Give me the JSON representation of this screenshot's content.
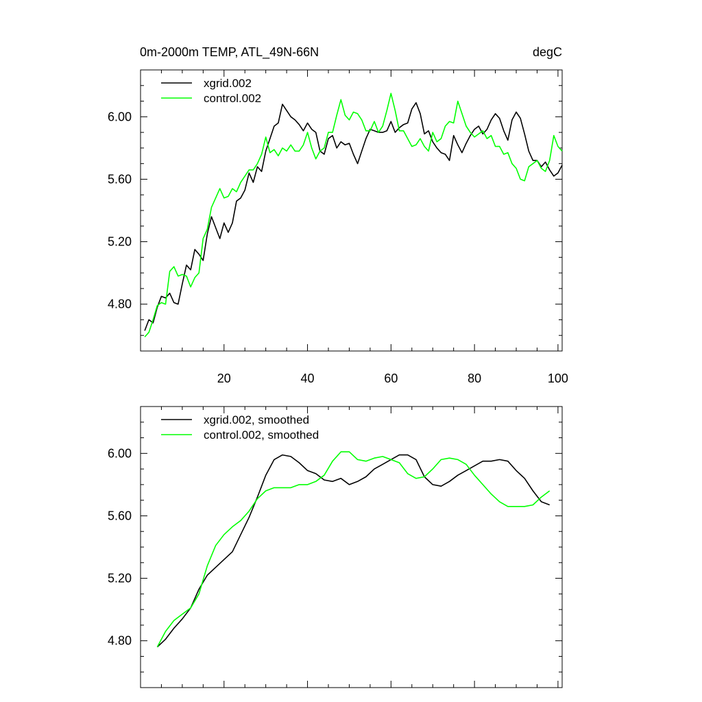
{
  "figure": {
    "title_left": "0m-2000m TEMP, ATL_49N-66N",
    "title_right": "degC"
  },
  "colors": {
    "black_series": "#000000",
    "green_series": "#00ff00",
    "axis": "#000000"
  },
  "chart_data": [
    {
      "type": "line",
      "title": "0m-2000m TEMP, ATL_49N-66N",
      "units": "degC",
      "xlim": [
        0,
        101
      ],
      "ylim": [
        4.5,
        6.3
      ],
      "xticks": [
        20,
        40,
        60,
        80,
        100
      ],
      "xtick_labels": [
        "20",
        "40",
        "60",
        "80",
        "100"
      ],
      "yticks": [
        4.8,
        5.2,
        5.6,
        6.0
      ],
      "ytick_labels": [
        "4.80",
        "5.20",
        "5.60",
        "6.00"
      ],
      "legend": [
        "xgrid.002",
        "control.002"
      ],
      "legend_position": "top-left",
      "x": [
        1,
        2,
        3,
        4,
        5,
        6,
        7,
        8,
        9,
        10,
        11,
        12,
        13,
        14,
        15,
        16,
        17,
        18,
        19,
        20,
        21,
        22,
        23,
        24,
        25,
        26,
        27,
        28,
        29,
        30,
        31,
        32,
        33,
        34,
        35,
        36,
        37,
        38,
        39,
        40,
        41,
        42,
        43,
        44,
        45,
        46,
        47,
        48,
        49,
        50,
        51,
        52,
        53,
        54,
        55,
        56,
        57,
        58,
        59,
        60,
        61,
        62,
        63,
        64,
        65,
        66,
        67,
        68,
        69,
        70,
        71,
        72,
        73,
        74,
        75,
        76,
        77,
        78,
        79,
        80,
        81,
        82,
        83,
        84,
        85,
        86,
        87,
        88,
        89,
        90,
        91,
        92,
        93,
        94,
        95,
        96,
        97,
        98,
        99,
        100,
        101
      ],
      "series": [
        {
          "name": "xgrid.002",
          "color": "#000000",
          "values": [
            4.63,
            4.7,
            4.68,
            4.78,
            4.85,
            4.84,
            4.87,
            4.81,
            4.8,
            4.93,
            5.05,
            5.02,
            5.15,
            5.12,
            5.08,
            5.25,
            5.36,
            5.29,
            5.22,
            5.32,
            5.26,
            5.32,
            5.46,
            5.48,
            5.53,
            5.64,
            5.58,
            5.68,
            5.65,
            5.78,
            5.86,
            5.94,
            5.96,
            6.08,
            6.04,
            6.0,
            5.98,
            5.95,
            5.91,
            5.96,
            5.92,
            5.9,
            5.78,
            5.76,
            5.86,
            5.88,
            5.8,
            5.84,
            5.82,
            5.83,
            5.76,
            5.7,
            5.78,
            5.86,
            5.92,
            5.91,
            5.9,
            5.9,
            5.91,
            5.97,
            5.9,
            5.93,
            5.95,
            5.96,
            6.05,
            6.09,
            6.02,
            5.89,
            5.91,
            5.84,
            5.8,
            5.77,
            5.76,
            5.72,
            5.88,
            5.82,
            5.77,
            5.83,
            5.88,
            5.92,
            5.94,
            5.89,
            5.92,
            5.98,
            6.02,
            5.99,
            5.91,
            5.85,
            5.98,
            6.03,
            5.99,
            5.89,
            5.78,
            5.72,
            5.72,
            5.68,
            5.71,
            5.66,
            5.62,
            5.64,
            5.69
          ]
        },
        {
          "name": "control.002",
          "color": "#00ff00",
          "values": [
            4.59,
            4.62,
            4.7,
            4.79,
            4.81,
            4.8,
            5.01,
            5.04,
            4.98,
            4.99,
            4.98,
            4.91,
            4.97,
            5.0,
            5.22,
            5.28,
            5.42,
            5.48,
            5.54,
            5.48,
            5.49,
            5.54,
            5.52,
            5.58,
            5.62,
            5.66,
            5.66,
            5.7,
            5.76,
            5.87,
            5.77,
            5.79,
            5.75,
            5.8,
            5.78,
            5.82,
            5.78,
            5.78,
            5.82,
            5.9,
            5.8,
            5.73,
            5.78,
            5.8,
            5.9,
            5.9,
            6.01,
            6.11,
            6.01,
            5.98,
            6.03,
            6.02,
            5.98,
            5.91,
            5.91,
            5.97,
            5.9,
            5.94,
            6.04,
            6.15,
            6.04,
            5.91,
            5.91,
            5.86,
            5.81,
            5.82,
            5.86,
            5.81,
            5.78,
            5.9,
            5.84,
            5.86,
            5.94,
            5.97,
            5.96,
            6.1,
            6.02,
            5.94,
            5.9,
            5.87,
            5.89,
            5.91,
            5.86,
            5.88,
            5.81,
            5.81,
            5.76,
            5.77,
            5.7,
            5.67,
            5.6,
            5.59,
            5.68,
            5.7,
            5.72,
            5.67,
            5.65,
            5.72,
            5.88,
            5.81,
            5.78
          ]
        }
      ]
    },
    {
      "type": "line",
      "xlim": [
        0,
        101
      ],
      "ylim": [
        4.5,
        6.3
      ],
      "xticks": [
        20,
        40,
        60,
        80,
        100
      ],
      "yticks": [
        4.8,
        5.2,
        5.6,
        6.0
      ],
      "ytick_labels": [
        "4.80",
        "5.20",
        "5.60",
        "6.00"
      ],
      "legend": [
        "xgrid.002, smoothed",
        "control.002, smoothed"
      ],
      "legend_position": "top-left",
      "x": [
        4,
        6,
        8,
        10,
        12,
        14,
        16,
        18,
        20,
        22,
        24,
        26,
        28,
        30,
        32,
        34,
        36,
        38,
        40,
        42,
        44,
        46,
        48,
        50,
        52,
        54,
        56,
        58,
        60,
        62,
        64,
        66,
        68,
        70,
        72,
        74,
        76,
        78,
        80,
        82,
        84,
        86,
        88,
        90,
        92,
        94,
        96,
        98
      ],
      "series": [
        {
          "name": "xgrid.002, smoothed",
          "color": "#000000",
          "values": [
            4.76,
            4.81,
            4.88,
            4.94,
            5.01,
            5.13,
            5.22,
            5.27,
            5.32,
            5.37,
            5.48,
            5.59,
            5.72,
            5.86,
            5.96,
            5.99,
            5.98,
            5.94,
            5.89,
            5.87,
            5.83,
            5.82,
            5.84,
            5.8,
            5.82,
            5.85,
            5.9,
            5.93,
            5.96,
            5.99,
            5.99,
            5.96,
            5.85,
            5.8,
            5.79,
            5.82,
            5.86,
            5.89,
            5.92,
            5.95,
            5.95,
            5.96,
            5.95,
            5.89,
            5.84,
            5.76,
            5.69,
            5.67
          ]
        },
        {
          "name": "control.002, smoothed",
          "color": "#00ff00",
          "values": [
            4.76,
            4.86,
            4.93,
            4.97,
            5.01,
            5.1,
            5.28,
            5.41,
            5.48,
            5.53,
            5.57,
            5.63,
            5.71,
            5.76,
            5.78,
            5.78,
            5.78,
            5.8,
            5.8,
            5.82,
            5.86,
            5.95,
            6.01,
            6.01,
            5.96,
            5.95,
            5.97,
            5.98,
            5.96,
            5.94,
            5.87,
            5.84,
            5.85,
            5.9,
            5.96,
            5.97,
            5.96,
            5.93,
            5.86,
            5.8,
            5.74,
            5.69,
            5.66,
            5.66,
            5.66,
            5.67,
            5.72,
            5.76
          ]
        }
      ]
    }
  ]
}
